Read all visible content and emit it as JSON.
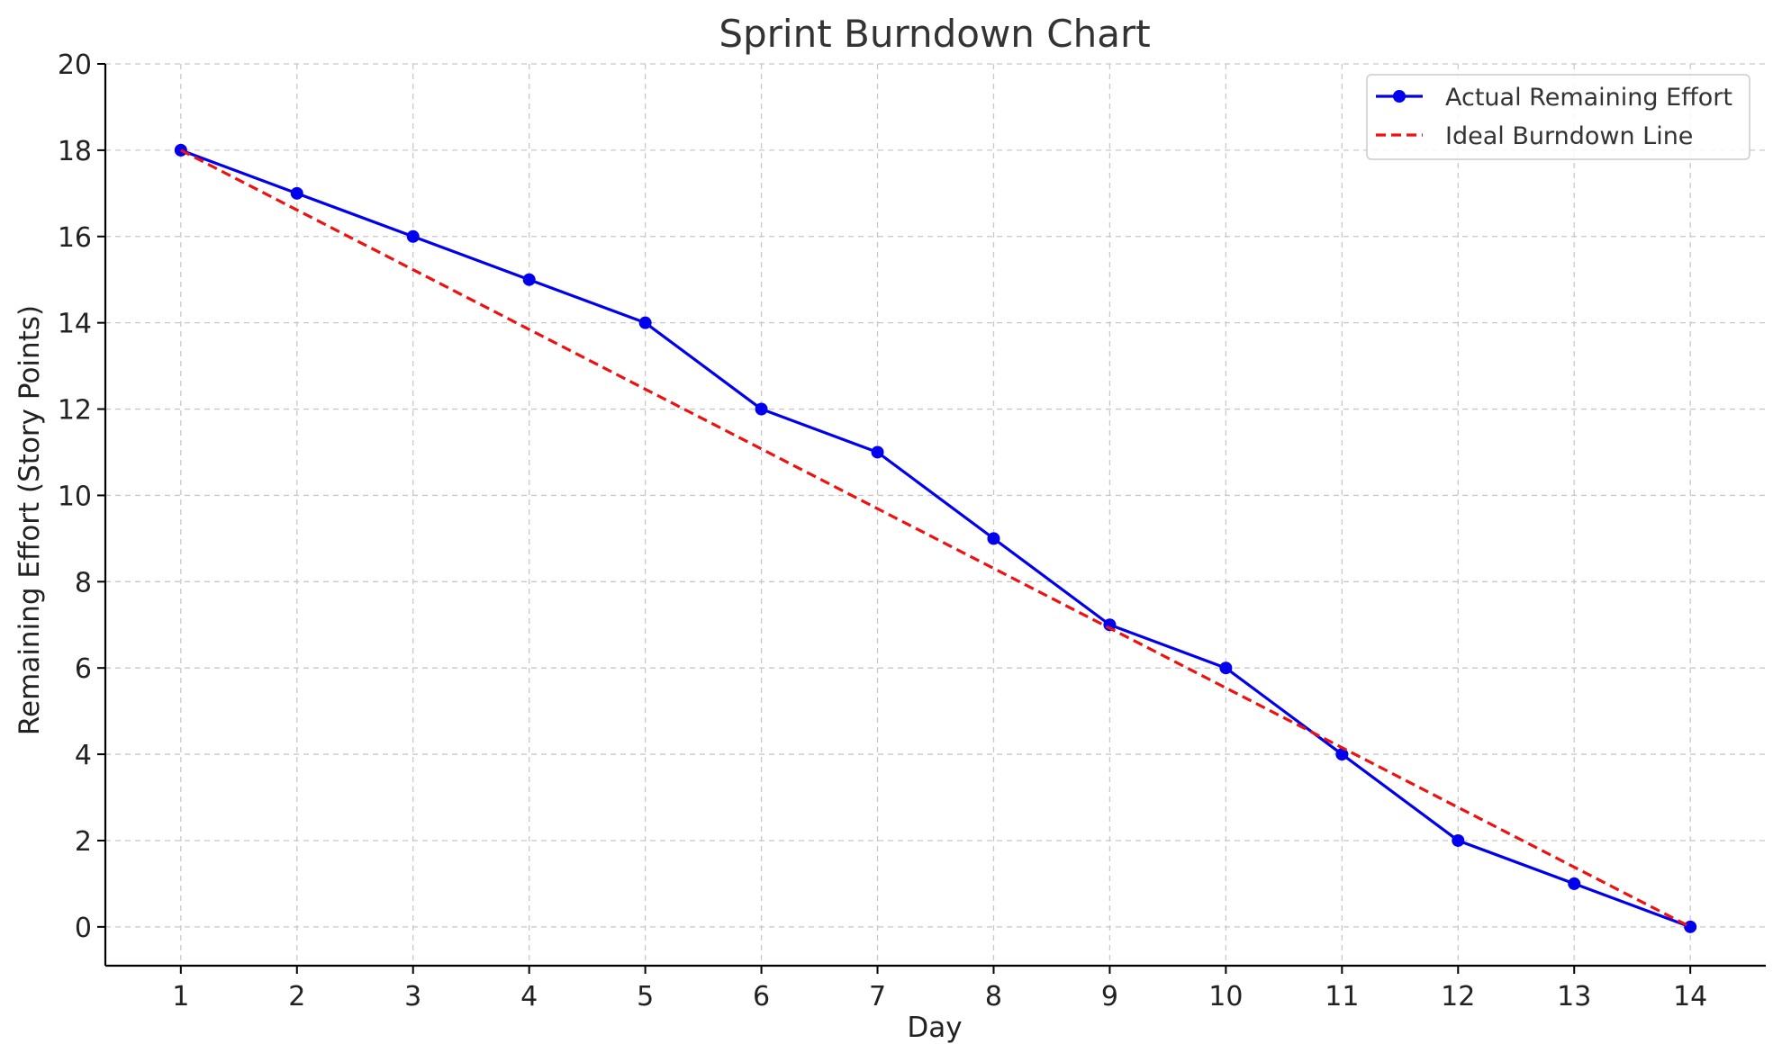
{
  "chart_data": {
    "type": "line",
    "title": "Sprint Burndown Chart",
    "xlabel": "Day",
    "ylabel": "Remaining Effort (Story Points)",
    "x": [
      1,
      2,
      3,
      4,
      5,
      6,
      7,
      8,
      9,
      10,
      11,
      12,
      13,
      14
    ],
    "x_ticks": [
      "1",
      "2",
      "3",
      "4",
      "5",
      "6",
      "7",
      "8",
      "9",
      "10",
      "11",
      "12",
      "13",
      "14"
    ],
    "y_ticks": [
      "0",
      "2",
      "4",
      "6",
      "8",
      "10",
      "12",
      "14",
      "16",
      "18",
      "20"
    ],
    "xlim": [
      0.35,
      14.65
    ],
    "ylim": [
      -0.9,
      20
    ],
    "grid": true,
    "legend_position": "top-right",
    "series": [
      {
        "name": "Actual Remaining Effort",
        "values": [
          18,
          17,
          16,
          15,
          14,
          12,
          11,
          9,
          7,
          6,
          4,
          2,
          1,
          0
        ],
        "color": "#0000ee",
        "style": "solid",
        "marker": "circle"
      },
      {
        "name": "Ideal Burndown Line",
        "values": [
          18,
          16.615,
          15.231,
          13.846,
          12.462,
          11.077,
          9.692,
          8.308,
          6.923,
          5.538,
          4.154,
          2.769,
          1.385,
          0
        ],
        "color": "#ee1111",
        "style": "dashed",
        "marker": "none"
      }
    ]
  }
}
